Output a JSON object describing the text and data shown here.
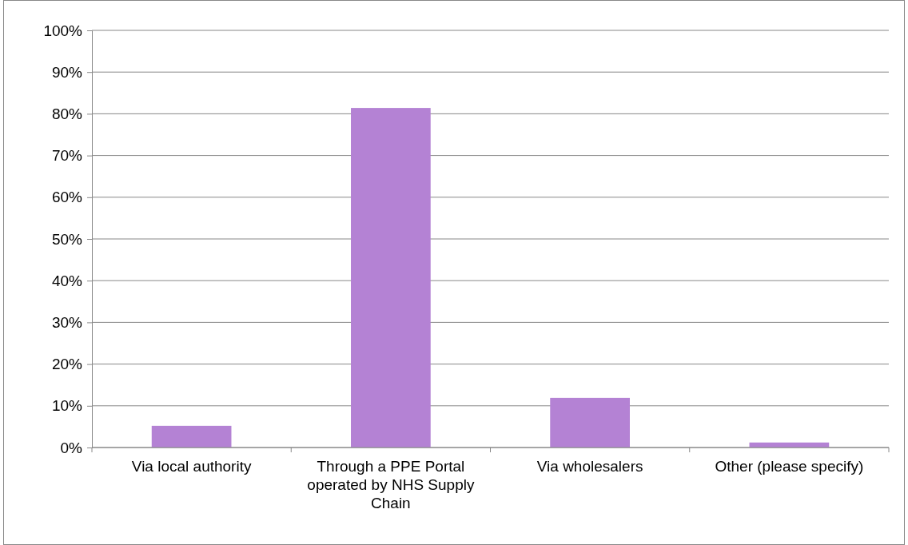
{
  "chart_data": {
    "type": "bar",
    "categories": [
      "Via local authority",
      "Through a PPE Portal operated by NHS Supply Chain",
      "Via wholesalers",
      "Other (please specify)"
    ],
    "values": [
      5.2,
      81.4,
      11.9,
      1.2
    ],
    "color": "#b482d4",
    "ylim": [
      0,
      100
    ],
    "yticks": [
      {
        "value": 0,
        "label": "0%"
      },
      {
        "value": 10,
        "label": "10%"
      },
      {
        "value": 20,
        "label": "20%"
      },
      {
        "value": 30,
        "label": "30%"
      },
      {
        "value": 40,
        "label": "40%"
      },
      {
        "value": 50,
        "label": "50%"
      },
      {
        "value": 60,
        "label": "60%"
      },
      {
        "value": 70,
        "label": "70%"
      },
      {
        "value": 80,
        "label": "80%"
      },
      {
        "value": 90,
        "label": "90%"
      },
      {
        "value": 100,
        "label": "100%"
      }
    ],
    "grid": "y"
  }
}
